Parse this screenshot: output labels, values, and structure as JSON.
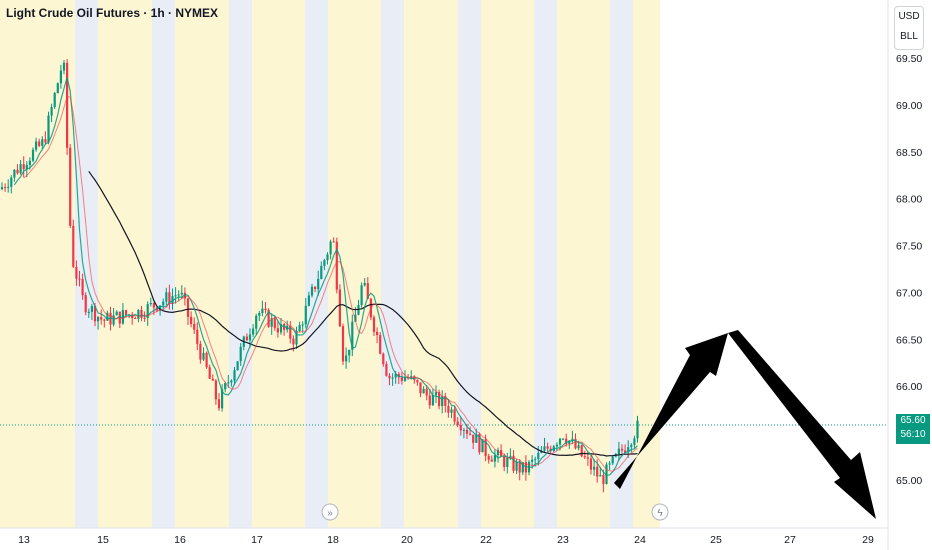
{
  "header": {
    "title": "Light Crude Oil Futures · 1h · NYMEX"
  },
  "unit_box": {
    "line1": "USD",
    "line2": "BLL"
  },
  "price_tag": {
    "price": "65.60",
    "countdown": "56:10"
  },
  "colors": {
    "up": "#089981",
    "down": "#f23645",
    "session_a": "#fdf6d3",
    "session_b": "#e9eef6",
    "ma": "#131722",
    "arrow": "#000000"
  },
  "chart_data": {
    "type": "candlestick",
    "title": "Light Crude Oil Futures · 1h · NYMEX",
    "ylim": [
      64.7,
      69.75
    ],
    "y_ticks": [
      "69.50",
      "69.00",
      "68.50",
      "68.00",
      "67.50",
      "67.00",
      "66.50",
      "66.00",
      "65.50",
      "65.00"
    ],
    "x_ticks": [
      "13",
      "15",
      "16",
      "17",
      "18",
      "20",
      "22",
      "23",
      "24",
      "25",
      "27",
      "29"
    ],
    "current_price": 65.6,
    "ohlc_anchors": [
      {
        "date": "13",
        "close": 68.4
      },
      {
        "date": "13.5",
        "close": 68.6
      },
      {
        "date": "14",
        "close": 69.5
      },
      {
        "date": "14.2",
        "close": 67.4
      },
      {
        "date": "14.5",
        "close": 66.9
      },
      {
        "date": "15",
        "close": 66.7
      },
      {
        "date": "15.5",
        "close": 66.8
      },
      {
        "date": "16",
        "close": 67.0
      },
      {
        "date": "16.5",
        "close": 65.8
      },
      {
        "date": "17",
        "close": 66.8
      },
      {
        "date": "17.5",
        "close": 66.5
      },
      {
        "date": "18",
        "close": 67.6
      },
      {
        "date": "18.3",
        "close": 66.2
      },
      {
        "date": "18.8",
        "close": 67.1
      },
      {
        "date": "19.5",
        "close": 66.1
      },
      {
        "date": "20",
        "close": 66.1
      },
      {
        "date": "20.5",
        "close": 65.9
      },
      {
        "date": "21",
        "close": 65.8
      },
      {
        "date": "22",
        "close": 65.3
      },
      {
        "date": "22.5",
        "close": 65.1
      },
      {
        "date": "23",
        "close": 65.5
      },
      {
        "date": "23.5",
        "close": 65.0
      },
      {
        "date": "24",
        "close": 65.6
      }
    ],
    "forecast_arrows": [
      {
        "from_x": "23.7",
        "from_y": 64.95,
        "to_x": "25.1",
        "to_y": 66.55
      },
      {
        "from_x": "25.1",
        "from_y": 66.55,
        "to_x": "29.1",
        "to_y": 64.65
      }
    ]
  }
}
